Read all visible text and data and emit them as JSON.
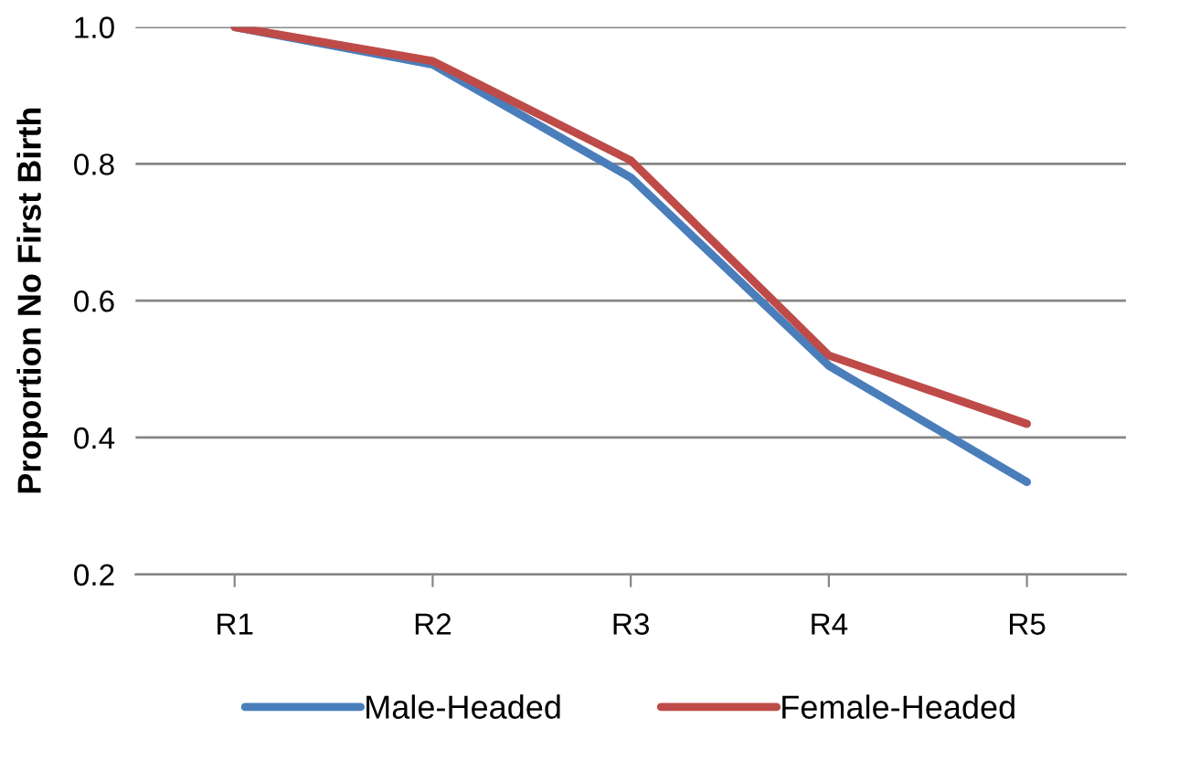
{
  "chart_data": {
    "type": "line",
    "ylabel": "Proportion No First Birth",
    "categories": [
      "R1",
      "R2",
      "R3",
      "R4",
      "R5"
    ],
    "series": [
      {
        "name": "Male-Headed",
        "color": "#4a7ebb",
        "values": [
          1.0,
          0.945,
          0.78,
          0.505,
          0.335
        ]
      },
      {
        "name": "Female-Headed",
        "color": "#be4b48",
        "values": [
          1.0,
          0.95,
          0.805,
          0.52,
          0.42
        ]
      }
    ],
    "ylim": [
      0.2,
      1.0
    ],
    "yticks": [
      0.2,
      0.4,
      0.6,
      0.8,
      {
        "value": 1.0,
        "label": "1.0"
      }
    ],
    "grid": "y",
    "legend": "bottom",
    "marker": "none",
    "line_style": "solid"
  }
}
